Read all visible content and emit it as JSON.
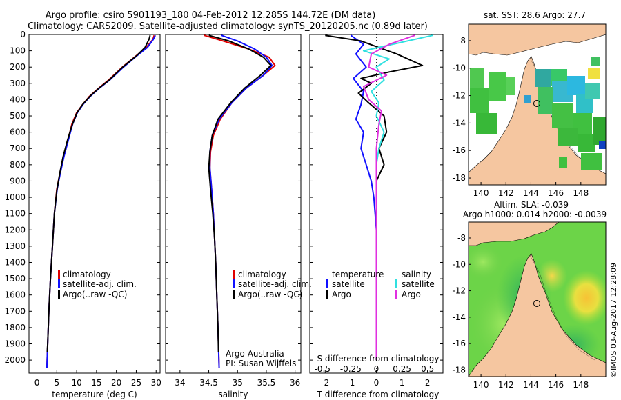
{
  "titles": {
    "line1": "Argo profile: csiro 5901193_180 04-Feb-2012 12.285S 144.72E (DM data)",
    "line2": "Climatology: CARS2009. Satellite-adjusted climatology: synTS_20120205.nc (0.89d later)",
    "sst_map": "sat. SST: 28.6 Argo: 27.7",
    "sla_map_1": "Altim. SLA: -0.039",
    "sla_map_2": "Argo h1000: 0.014 h2000: -0.0039",
    "credit": "©IMOS 03-Aug-2017 12:28:09"
  },
  "legend_temp": {
    "clim": "climatology",
    "sat": "satellite-adj. clim.",
    "argo": "Argo(..raw -QC)"
  },
  "legend_sal": {
    "clim": "climatology",
    "sat": "satellite-adj. clim.",
    "argo": "Argo(..raw -QC)"
  },
  "legend_diff": {
    "temperature": "temperature",
    "salinity": "salinity",
    "t_sat": "satellite",
    "t_argo": "Argo",
    "s_sat": "satellite",
    "s_argo": "Argo"
  },
  "sal_note": {
    "line1": "Argo Australia",
    "line2": "PI: Susan Wijffels"
  },
  "colors": {
    "clim": "#e00000",
    "sat": "#1010ff",
    "argo": "#000000",
    "s_sat": "#30e0e0",
    "s_argo": "#e030e0",
    "land": "#f5c6a0"
  },
  "chart_data": [
    {
      "type": "line",
      "name": "temperature-profile",
      "xlabel": "temperature (deg C)",
      "ylabel": "",
      "xlim": [
        -2,
        31
      ],
      "ylim": [
        2080,
        0
      ],
      "xticks": [
        0,
        5,
        10,
        15,
        20,
        25,
        30
      ],
      "yticks": [
        0,
        100,
        200,
        300,
        400,
        500,
        600,
        700,
        800,
        900,
        1000,
        1100,
        1200,
        1300,
        1400,
        1500,
        1600,
        1700,
        1800,
        1900,
        2000
      ],
      "series": [
        {
          "name": "climatology",
          "color": "#e00000",
          "points": [
            [
              29.5,
              5
            ],
            [
              29.2,
              30
            ],
            [
              27.5,
              80
            ],
            [
              25,
              130
            ],
            [
              21.5,
              200
            ],
            [
              18,
              280
            ],
            [
              15.5,
              330
            ],
            [
              13.2,
              380
            ],
            [
              11.5,
              430
            ],
            [
              10,
              480
            ],
            [
              8.8,
              550
            ],
            [
              7.8,
              650
            ],
            [
              6.7,
              750
            ],
            [
              5.8,
              850
            ],
            [
              5.0,
              950
            ],
            [
              4.4,
              1100
            ],
            [
              3.9,
              1300
            ],
            [
              3.4,
              1500
            ],
            [
              3.0,
              1700
            ],
            [
              2.7,
              1900
            ],
            [
              2.5,
              2050
            ]
          ]
        },
        {
          "name": "satellite-adj. clim.",
          "color": "#1010ff",
          "points": [
            [
              29.8,
              5
            ],
            [
              29.3,
              30
            ],
            [
              27.8,
              80
            ],
            [
              25.2,
              130
            ],
            [
              21.8,
              200
            ],
            [
              18.3,
              280
            ],
            [
              15.7,
              330
            ],
            [
              13.4,
              380
            ],
            [
              11.6,
              430
            ],
            [
              10.2,
              480
            ],
            [
              9.0,
              550
            ],
            [
              7.9,
              650
            ],
            [
              6.8,
              750
            ],
            [
              5.9,
              850
            ],
            [
              5.1,
              950
            ],
            [
              4.4,
              1100
            ],
            [
              3.9,
              1300
            ],
            [
              3.4,
              1500
            ],
            [
              3.0,
              1700
            ],
            [
              2.7,
              1900
            ],
            [
              2.5,
              2050
            ]
          ]
        },
        {
          "name": "Argo",
          "color": "#000000",
          "points": [
            [
              28.5,
              5
            ],
            [
              28.2,
              30
            ],
            [
              27.2,
              80
            ],
            [
              25.1,
              130
            ],
            [
              21.6,
              200
            ],
            [
              18.2,
              280
            ],
            [
              15.6,
              330
            ],
            [
              13.3,
              380
            ],
            [
              11.5,
              430
            ],
            [
              10.1,
              480
            ],
            [
              8.8,
              560
            ],
            [
              7.7,
              650
            ],
            [
              6.6,
              750
            ],
            [
              5.7,
              860
            ],
            [
              5.0,
              960
            ],
            [
              4.4,
              1100
            ],
            [
              3.9,
              1300
            ],
            [
              3.4,
              1500
            ],
            [
              3.0,
              1700
            ],
            [
              2.7,
              1900
            ],
            [
              2.6,
              1950
            ]
          ]
        }
      ]
    },
    {
      "type": "line",
      "name": "salinity-profile",
      "xlabel": "salinity",
      "xlim": [
        33.75,
        36.1
      ],
      "ylim": [
        2080,
        0
      ],
      "xticks": [
        34,
        34.5,
        35,
        35.5,
        36
      ],
      "series": [
        {
          "name": "climatology",
          "color": "#e00000",
          "points": [
            [
              34.42,
              5
            ],
            [
              34.75,
              40
            ],
            [
              35.2,
              90
            ],
            [
              35.55,
              140
            ],
            [
              35.65,
              190
            ],
            [
              35.45,
              250
            ],
            [
              35.15,
              330
            ],
            [
              34.9,
              420
            ],
            [
              34.7,
              520
            ],
            [
              34.58,
              620
            ],
            [
              34.53,
              720
            ],
            [
              34.52,
              820
            ],
            [
              34.55,
              950
            ],
            [
              34.58,
              1100
            ],
            [
              34.6,
              1250
            ],
            [
              34.62,
              1400
            ],
            [
              34.64,
              1600
            ],
            [
              34.66,
              1800
            ],
            [
              34.68,
              2050
            ]
          ]
        },
        {
          "name": "satellite-adj. clim.",
          "color": "#1010ff",
          "points": [
            [
              34.72,
              5
            ],
            [
              35.0,
              40
            ],
            [
              35.3,
              90
            ],
            [
              35.5,
              140
            ],
            [
              35.6,
              190
            ],
            [
              35.45,
              250
            ],
            [
              35.15,
              330
            ],
            [
              34.9,
              420
            ],
            [
              34.68,
              520
            ],
            [
              34.56,
              620
            ],
            [
              34.52,
              720
            ],
            [
              34.52,
              820
            ],
            [
              34.55,
              950
            ],
            [
              34.58,
              1100
            ],
            [
              34.6,
              1250
            ],
            [
              34.62,
              1400
            ],
            [
              34.64,
              1600
            ],
            [
              34.66,
              1800
            ],
            [
              34.68,
              2050
            ]
          ]
        },
        {
          "name": "Argo",
          "color": "#000000",
          "points": [
            [
              34.5,
              5
            ],
            [
              34.85,
              40
            ],
            [
              35.2,
              90
            ],
            [
              35.45,
              140
            ],
            [
              35.58,
              190
            ],
            [
              35.4,
              250
            ],
            [
              35.12,
              330
            ],
            [
              34.88,
              420
            ],
            [
              34.66,
              520
            ],
            [
              34.56,
              620
            ],
            [
              34.52,
              720
            ],
            [
              34.5,
              820
            ],
            [
              34.53,
              950
            ],
            [
              34.57,
              1100
            ],
            [
              34.6,
              1250
            ],
            [
              34.62,
              1400
            ],
            [
              34.64,
              1600
            ],
            [
              34.66,
              1800
            ],
            [
              34.67,
              1950
            ]
          ]
        }
      ]
    },
    {
      "type": "line",
      "name": "difference-profile",
      "xlabel": "T difference from climatology",
      "xlabel_top": "S difference from climatology",
      "xlim": [
        -2.6,
        2.6
      ],
      "ylim": [
        2080,
        0
      ],
      "xticks_T": [
        -2,
        -1,
        0,
        1,
        2
      ],
      "xticks_S": [
        "-0.5",
        "-0.25",
        "0",
        "0.25",
        "0.5"
      ],
      "series": [
        {
          "name": "T satellite",
          "color": "#1010ff",
          "points": [
            [
              -1.0,
              5
            ],
            [
              -0.5,
              60
            ],
            [
              -0.8,
              120
            ],
            [
              -0.4,
              200
            ],
            [
              -0.9,
              270
            ],
            [
              -0.5,
              350
            ],
            [
              -0.6,
              430
            ],
            [
              -0.8,
              520
            ],
            [
              -0.5,
              600
            ],
            [
              -0.6,
              700
            ],
            [
              -0.4,
              800
            ],
            [
              -0.2,
              900
            ],
            [
              -0.1,
              1000
            ],
            [
              0,
              1200
            ],
            [
              0,
              2000
            ]
          ]
        },
        {
          "name": "T Argo",
          "color": "#000000",
          "points": [
            [
              -2.0,
              5
            ],
            [
              -0.6,
              40
            ],
            [
              0.8,
              120
            ],
            [
              1.8,
              190
            ],
            [
              0.5,
              230
            ],
            [
              -0.6,
              270
            ],
            [
              -0.2,
              300
            ],
            [
              -0.7,
              360
            ],
            [
              -0.3,
              420
            ],
            [
              0.3,
              500
            ],
            [
              0.4,
              600
            ],
            [
              0.1,
              700
            ],
            [
              0.3,
              800
            ],
            [
              0,
              900
            ],
            [
              0,
              1950
            ]
          ]
        },
        {
          "name": "S satellite",
          "color": "#30e0e0",
          "points": [
            [
              2.2,
              5
            ],
            [
              -0.5,
              100
            ],
            [
              0.5,
              150
            ],
            [
              0,
              200
            ],
            [
              0.3,
              280
            ],
            [
              -0.2,
              350
            ],
            [
              0.1,
              420
            ],
            [
              0,
              500
            ],
            [
              0.3,
              600
            ],
            [
              0.1,
              700
            ],
            [
              0,
              800
            ],
            [
              0,
              2000
            ]
          ]
        },
        {
          "name": "S Argo",
          "color": "#e030e0",
          "points": [
            [
              1.5,
              5
            ],
            [
              0.5,
              60
            ],
            [
              -0.2,
              120
            ],
            [
              -0.3,
              200
            ],
            [
              0.4,
              250
            ],
            [
              -0.5,
              320
            ],
            [
              -0.3,
              400
            ],
            [
              0.2,
              470
            ],
            [
              0.1,
              550
            ],
            [
              0,
              700
            ],
            [
              0,
              2000
            ]
          ]
        }
      ]
    },
    {
      "type": "heatmap",
      "name": "sst-map",
      "title": "sat. SST: 28.6 Argo: 27.7",
      "xticks": [
        140,
        142,
        144,
        146,
        148
      ],
      "yticks": [
        -8,
        -10,
        -12,
        -14,
        -16,
        -18
      ],
      "xlim": [
        139,
        150
      ],
      "ylim": [
        -18.5,
        -6.8
      ],
      "argo_position": [
        144.72,
        -12.285
      ]
    },
    {
      "type": "heatmap",
      "name": "sla-map",
      "title": "Altim. SLA: -0.039",
      "xticks": [
        140,
        142,
        144,
        146,
        148
      ],
      "yticks": [
        -8,
        -10,
        -12,
        -14,
        -16,
        -18
      ],
      "xlim": [
        139,
        150
      ],
      "ylim": [
        -18.5,
        -6.8
      ],
      "argo_position": [
        144.72,
        -12.285
      ]
    }
  ]
}
